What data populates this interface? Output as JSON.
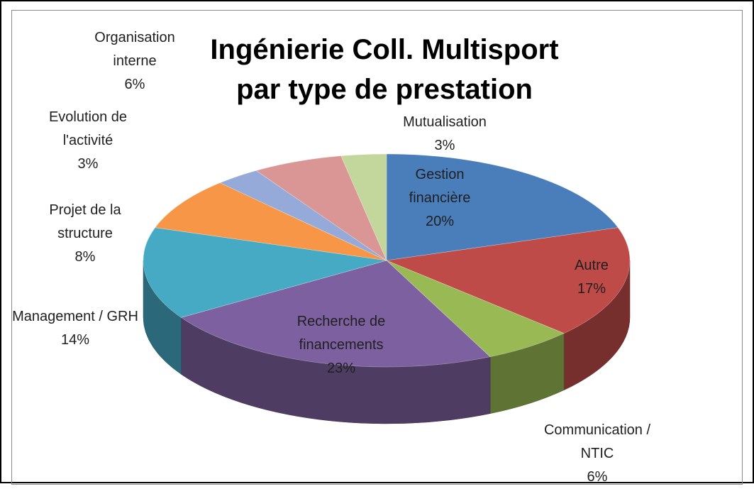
{
  "chart_data": {
    "type": "pie",
    "title": "Ingénierie Coll. Multisport par type de prestation",
    "categories": [
      "Gestion financière",
      "Autre",
      "Communication / NTIC",
      "Recherche de financements",
      "Management / GRH",
      "Projet de la structure",
      "Evolution de l'activité",
      "Organisation interne",
      "Mutualisation"
    ],
    "values": [
      20,
      17,
      6,
      23,
      14,
      8,
      3,
      6,
      3
    ],
    "value_labels": [
      "20%",
      "17%",
      "6%",
      "23%",
      "14%",
      "8%",
      "3%",
      "6%",
      "3%"
    ],
    "colors": [
      "#4a7ebb",
      "#be4b48",
      "#98b954",
      "#7d60a0",
      "#46aac5",
      "#f79646",
      "#95aad8",
      "#d99694",
      "#c3d69b"
    ]
  }
}
